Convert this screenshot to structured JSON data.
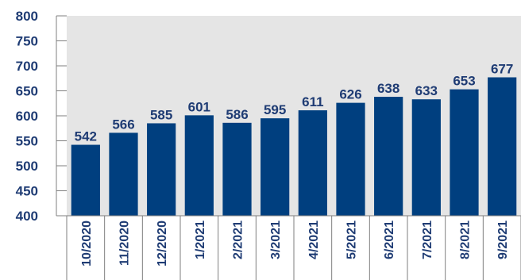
{
  "chart_data": {
    "type": "bar",
    "title": "",
    "xlabel": "",
    "ylabel": "",
    "categories": [
      "10/2020",
      "11/2020",
      "12/2020",
      "1/2021",
      "2/2021",
      "3/2021",
      "4/2021",
      "5/2021",
      "6/2021",
      "7/2021",
      "8/2021",
      "9/2021"
    ],
    "values": [
      542,
      566,
      585,
      601,
      586,
      595,
      611,
      626,
      638,
      633,
      653,
      677
    ],
    "data_labels": [
      "542",
      "566",
      "585",
      "601",
      "586",
      "595",
      "611",
      "626",
      "638",
      "633",
      "653",
      "677"
    ],
    "ylim": [
      400,
      800
    ],
    "yticks": [
      400,
      450,
      500,
      550,
      600,
      650,
      700,
      750,
      800
    ],
    "ytick_labels": [
      "400",
      "450",
      "500",
      "550",
      "600",
      "650",
      "700",
      "750",
      "800"
    ],
    "grid": false,
    "legend": "none",
    "colors": {
      "bar": "#003f7f",
      "plot_background": "#e5e5e5",
      "text": "#1f3c74",
      "axis": "#7f7f7f"
    }
  }
}
